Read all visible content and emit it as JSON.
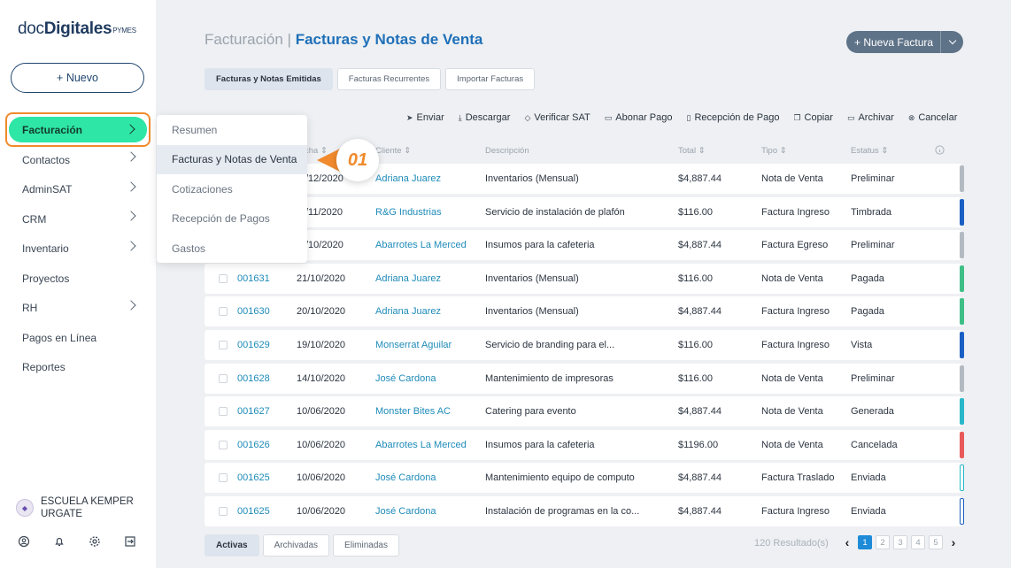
{
  "logo": {
    "part1": "doc",
    "part2": "Digitales",
    "part3": "PYMES"
  },
  "sidebar": {
    "new_button": "+ Nuevo",
    "active_item": "Facturación",
    "items": [
      {
        "label": "Contactos",
        "chevron": true
      },
      {
        "label": "AdminSAT",
        "chevron": true
      },
      {
        "label": "CRM",
        "chevron": true
      },
      {
        "label": "Inventario",
        "chevron": true
      },
      {
        "label": "Proyectos",
        "chevron": false
      },
      {
        "label": "RH",
        "chevron": true
      },
      {
        "label": "Pagos en Línea",
        "chevron": false
      },
      {
        "label": "Reportes",
        "chevron": false
      }
    ],
    "user": {
      "name": "ESCUELA KEMPER URGATE"
    }
  },
  "submenu": {
    "items": [
      "Resumen",
      "Facturas y Notas de Venta",
      "Cotizaciones",
      "Recepción de Pagos",
      "Gastos"
    ],
    "selected_index": 1
  },
  "step_badge": "01",
  "header": {
    "crumb_parent": "Facturación |",
    "crumb_current": "Facturas y Notas de Venta",
    "new_invoice_button": "+ Nueva Factura"
  },
  "tabs": [
    "Facturas y Notas Emitidas",
    "Facturas Recurrentes",
    "Importar Facturas"
  ],
  "toolbar": [
    {
      "icon": "send-icon",
      "glyph": "➤",
      "label": "Enviar"
    },
    {
      "icon": "download-icon",
      "glyph": "⤓",
      "label": "Descargar"
    },
    {
      "icon": "verify-icon",
      "glyph": "◇",
      "label": "Verificar SAT"
    },
    {
      "icon": "payment-icon",
      "glyph": "▭",
      "label": "Abonar Pago"
    },
    {
      "icon": "receipt-icon",
      "glyph": "▯",
      "label": "Recepción de Pago"
    },
    {
      "icon": "copy-icon",
      "glyph": "❐",
      "label": "Copiar"
    },
    {
      "icon": "archive-icon",
      "glyph": "▭",
      "label": "Archivar"
    },
    {
      "icon": "cancel-icon",
      "glyph": "⊗",
      "label": "Cancelar"
    }
  ],
  "table": {
    "columns": [
      "cha ⇕",
      "Cliente ⇕",
      "Descripción",
      "Total ⇕",
      "Tipo ⇕",
      "Estatus ⇕"
    ],
    "rows": [
      {
        "folio": "",
        "fecha": "/12/2020",
        "cliente": "Adriana Juarez",
        "descripcion": "Inventarios (Mensual)",
        "total": "$4,887.44",
        "tipo": "Nota de Venta",
        "estatus": "Preliminar",
        "color": "#b4bac1",
        "outline": false
      },
      {
        "folio": "",
        "fecha": "/11/2020",
        "cliente": "R&G Industrias",
        "descripcion": "Servicio de instalación de plafón",
        "total": "$116.00",
        "tipo": "Factura Ingreso",
        "estatus": "Timbrada",
        "color": "#1a5fc4",
        "outline": false
      },
      {
        "folio": "",
        "fecha": "/10/2020",
        "cliente": "Abarrotes La Merced",
        "descripcion": "Insumos para la cafeteria",
        "total": "$4,887.44",
        "tipo": "Factura Egreso",
        "estatus": "Preliminar",
        "color": "#b4bac1",
        "outline": false
      },
      {
        "folio": "001631",
        "fecha": "21/10/2020",
        "cliente": "Adriana Juarez",
        "descripcion": "Inventarios (Mensual)",
        "total": "$116.00",
        "tipo": "Nota de Venta",
        "estatus": "Pagada",
        "color": "#3fbf86",
        "outline": false
      },
      {
        "folio": "001630",
        "fecha": "20/10/2020",
        "cliente": "Adriana Juarez",
        "descripcion": "Inventarios (Mensual)",
        "total": "$4,887.44",
        "tipo": "Factura Ingreso",
        "estatus": "Pagada",
        "color": "#3fbf86",
        "outline": false
      },
      {
        "folio": "001629",
        "fecha": "19/10/2020",
        "cliente": "Monserrat Aguilar",
        "descripcion": "Servicio de branding para el...",
        "total": "$116.00",
        "tipo": "Factura Ingreso",
        "estatus": "Vista",
        "color": "#1a5fc4",
        "outline": false
      },
      {
        "folio": "001628",
        "fecha": "14/10/2020",
        "cliente": "José Cardona",
        "descripcion": "Mantenimiento de impresoras",
        "total": "$116.00",
        "tipo": "Nota de Venta",
        "estatus": "Preliminar",
        "color": "#b4bac1",
        "outline": false
      },
      {
        "folio": "001627",
        "fecha": "10/06/2020",
        "cliente": "Monster Bites AC",
        "descripcion": "Catering para evento",
        "total": "$4,887.44",
        "tipo": "Nota de Venta",
        "estatus": "Generada",
        "color": "#29b7c9",
        "outline": false
      },
      {
        "folio": "001626",
        "fecha": "10/06/2020",
        "cliente": "Abarrotes La Merced",
        "descripcion": "Insumos para la cafeteria",
        "total": "$1196.00",
        "tipo": "Nota de Venta",
        "estatus": "Cancelada",
        "color": "#e85a5a",
        "outline": false
      },
      {
        "folio": "001625",
        "fecha": "10/06/2020",
        "cliente": "José Cardona",
        "descripcion": "Mantenimiento equipo de computo",
        "total": "$4,887.44",
        "tipo": "Factura Traslado",
        "estatus": "Enviada",
        "color": "#29b7c9",
        "outline": true
      },
      {
        "folio": "001625",
        "fecha": "10/06/2020",
        "cliente": "José Cardona",
        "descripcion": "Instalación de programas en la co...",
        "total": "$4,887.44",
        "tipo": "Factura Ingreso",
        "estatus": "Enviada",
        "color": "#1a5fc4",
        "outline": true
      }
    ]
  },
  "bottom_tabs": [
    "Activas",
    "Archivadas",
    "Eliminadas"
  ],
  "pagination": {
    "results": "120 Resultado(s)",
    "pages": [
      "1",
      "2",
      "3",
      "4",
      "5"
    ],
    "current": "1"
  }
}
